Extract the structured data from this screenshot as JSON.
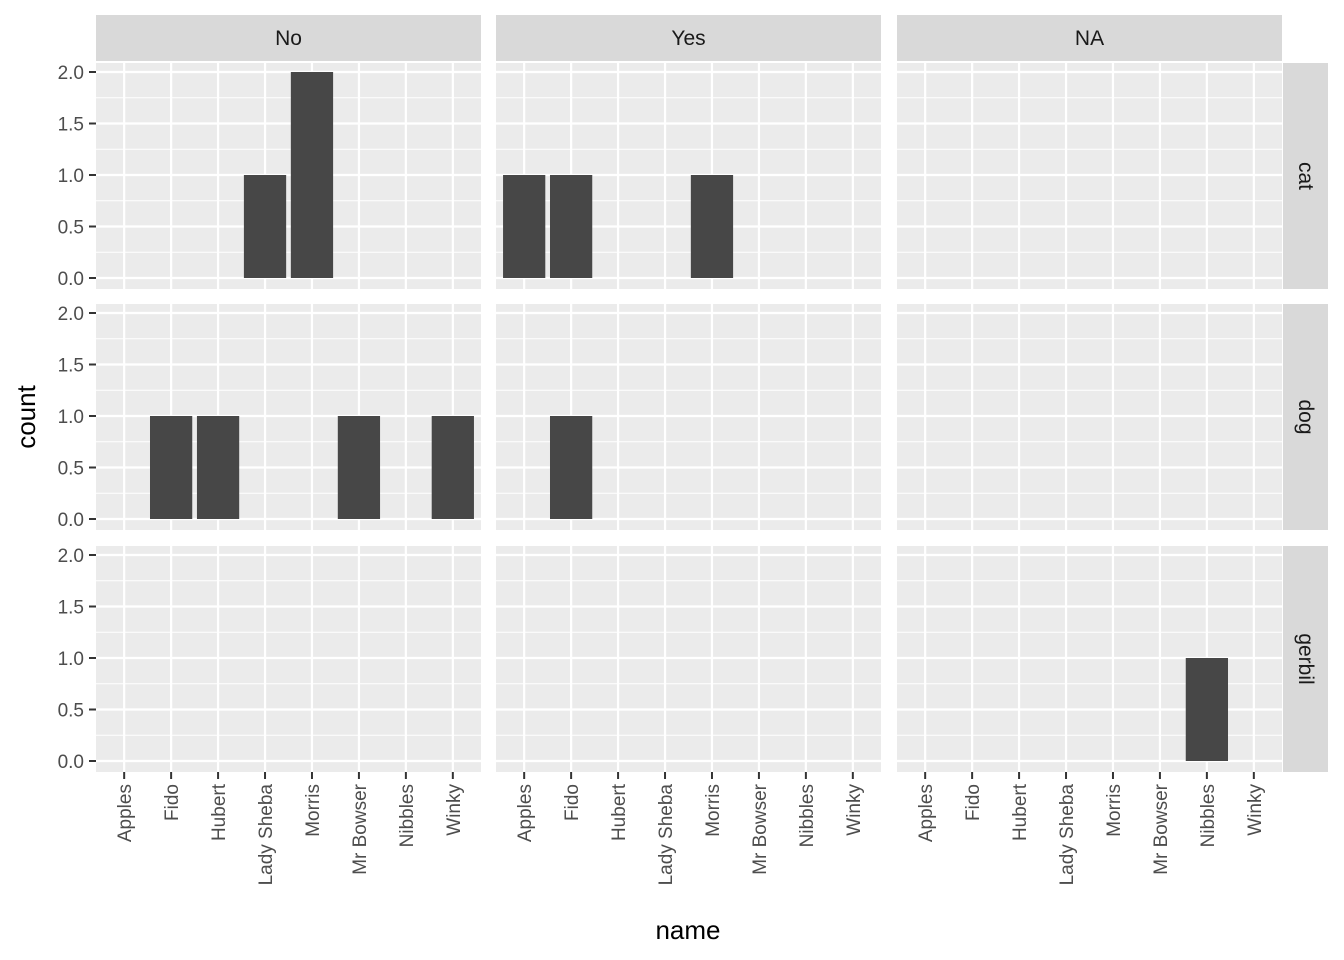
{
  "chart_data": {
    "type": "bar",
    "facet_cols": [
      "No",
      "Yes",
      "NA"
    ],
    "facet_rows": [
      "cat",
      "dog",
      "gerbil"
    ],
    "categories": [
      "Apples",
      "Fido",
      "Hubert",
      "Lady Sheba",
      "Morris",
      "Mr Bowser",
      "Nibbles",
      "Winky"
    ],
    "xlabel": "name",
    "ylabel": "count",
    "ylim": [
      0,
      2
    ],
    "yticks": [
      "0.0",
      "0.5",
      "1.0",
      "1.5",
      "2.0"
    ],
    "grid": true,
    "panels": [
      {
        "row": "cat",
        "col": "No",
        "values": [
          0,
          0,
          0,
          1,
          2,
          0,
          0,
          0
        ]
      },
      {
        "row": "cat",
        "col": "Yes",
        "values": [
          1,
          1,
          0,
          0,
          1,
          0,
          0,
          0
        ]
      },
      {
        "row": "cat",
        "col": "NA",
        "values": [
          0,
          0,
          0,
          0,
          0,
          0,
          0,
          0
        ]
      },
      {
        "row": "dog",
        "col": "No",
        "values": [
          0,
          1,
          1,
          0,
          0,
          1,
          0,
          1
        ]
      },
      {
        "row": "dog",
        "col": "Yes",
        "values": [
          0,
          1,
          0,
          0,
          0,
          0,
          0,
          0
        ]
      },
      {
        "row": "dog",
        "col": "NA",
        "values": [
          0,
          0,
          0,
          0,
          0,
          0,
          0,
          0
        ]
      },
      {
        "row": "gerbil",
        "col": "No",
        "values": [
          0,
          0,
          0,
          0,
          0,
          0,
          0,
          0
        ]
      },
      {
        "row": "gerbil",
        "col": "Yes",
        "values": [
          0,
          0,
          0,
          0,
          0,
          0,
          0,
          0
        ]
      },
      {
        "row": "gerbil",
        "col": "NA",
        "values": [
          0,
          0,
          0,
          0,
          0,
          0,
          1,
          0
        ]
      }
    ],
    "colors": {
      "panel_background": "#EBEBEB",
      "grid_major": "#FFFFFF",
      "strip_background": "#D9D9D9",
      "bar_fill": "#474747",
      "tick": "#333333"
    }
  }
}
